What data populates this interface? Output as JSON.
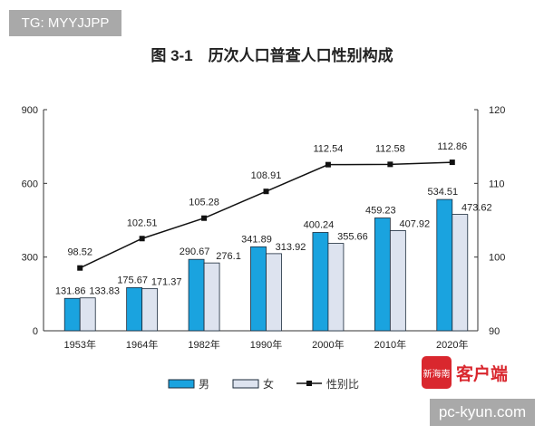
{
  "watermark_top": "TG: MYYJJPP",
  "watermark_bottom": "pc-kyun.com",
  "logo": {
    "icon_text": "新海南",
    "text": "客户端"
  },
  "chart_data": {
    "type": "bar",
    "title": "图 3-1　历次人口普查人口性别构成",
    "categories": [
      "1953年",
      "1964年",
      "1982年",
      "1990年",
      "2000年",
      "2010年",
      "2020年"
    ],
    "series": [
      {
        "name": "男",
        "type": "bar",
        "axis": "left",
        "color": "#1aa3df",
        "values": [
          131.86,
          175.67,
          290.67,
          341.89,
          400.24,
          459.23,
          534.51
        ]
      },
      {
        "name": "女",
        "type": "bar",
        "axis": "left",
        "color": "#dde3ef",
        "values": [
          133.83,
          171.37,
          276.1,
          313.92,
          355.66,
          407.92,
          473.62
        ]
      },
      {
        "name": "性别比",
        "type": "line",
        "axis": "right",
        "color": "#111111",
        "values": [
          98.52,
          102.51,
          105.28,
          108.91,
          112.54,
          112.58,
          112.86
        ]
      }
    ],
    "ylim_left": [
      0,
      900
    ],
    "yticks_left": [
      0,
      300,
      600,
      900
    ],
    "ylim_right": [
      90,
      120
    ],
    "yticks_right": [
      90,
      100,
      110,
      120
    ],
    "grid": false,
    "legend": "bottom"
  }
}
